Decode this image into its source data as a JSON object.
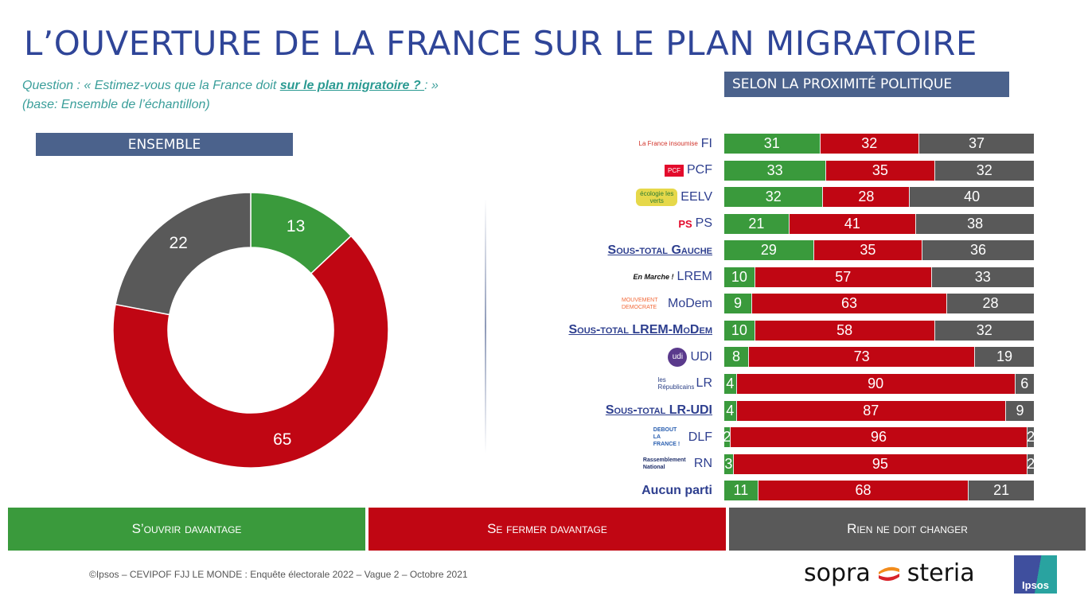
{
  "title": "L’OUVERTURE DE LA FRANCE SUR LE PLAN MIGRATOIRE",
  "question": {
    "prefix": "Question : « Estimez-vous que la France doit ",
    "highlight": "sur le plan migratoire ? ",
    "suffix": ": »",
    "base": "(base: Ensemble de l’échantillon)"
  },
  "sections": {
    "ensemble": "ENSEMBLE",
    "proximite": "SELON LA PROXIMITÉ POLITIQUE"
  },
  "colors": {
    "ouvrir": "#3a9a3c",
    "fermer": "#c00613",
    "rien": "#595959",
    "title": "#2f4598",
    "section": "#4b628c"
  },
  "legend": [
    {
      "key": "ouvrir",
      "label": "S’ouvrir davantage"
    },
    {
      "key": "fermer",
      "label": "Se fermer davantage"
    },
    {
      "key": "rien",
      "label": "Rien ne doit changer"
    }
  ],
  "chart_data": [
    {
      "type": "pie",
      "title": "ENSEMBLE",
      "donut": true,
      "slices": [
        {
          "label": "S’ouvrir davantage",
          "value": 13
        },
        {
          "label": "Se fermer davantage",
          "value": 65
        },
        {
          "label": "Rien ne doit changer",
          "value": 22
        }
      ]
    },
    {
      "type": "bar",
      "stacked": true,
      "orientation": "horizontal",
      "title": "SELON LA PROXIMITÉ POLITIQUE",
      "categories": [
        "FI",
        "PCF",
        "EELV",
        "PS",
        "Sous-total Gauche",
        "LREM",
        "MoDem",
        "Sous-total LREM-MoDem",
        "UDI",
        "LR",
        "Sous-total LR-UDI",
        "DLF",
        "RN",
        "Aucun parti"
      ],
      "series": [
        {
          "name": "S’ouvrir davantage",
          "values": [
            31,
            33,
            32,
            21,
            29,
            10,
            9,
            10,
            8,
            4,
            4,
            2,
            3,
            11
          ]
        },
        {
          "name": "Se fermer davantage",
          "values": [
            32,
            35,
            28,
            41,
            35,
            57,
            63,
            58,
            73,
            90,
            87,
            96,
            95,
            68
          ]
        },
        {
          "name": "Rien ne doit changer",
          "values": [
            37,
            32,
            40,
            38,
            36,
            33,
            28,
            32,
            19,
            6,
            9,
            2,
            2,
            21
          ]
        }
      ],
      "xlim": [
        0,
        100
      ]
    }
  ],
  "rows": [
    {
      "label": "FI",
      "type": "party",
      "logo": "La France insoumise",
      "logo_icon": "fi-logo-icon"
    },
    {
      "label": "PCF",
      "type": "party",
      "logo": "PCF",
      "logo_icon": "pcf-logo-icon"
    },
    {
      "label": "EELV",
      "type": "party",
      "logo": "écologie les verts",
      "logo_icon": "eelv-logo-icon"
    },
    {
      "label": "PS",
      "type": "party",
      "logo": "PS",
      "logo_icon": "ps-logo-icon"
    },
    {
      "label": "Sous-total Gauche",
      "type": "subtotal"
    },
    {
      "label": "LREM",
      "type": "party",
      "logo": "En Marche !",
      "logo_icon": "lrem-logo-icon"
    },
    {
      "label": "MoDem",
      "type": "party",
      "logo": "MOUVEMENT DEMOCRATE",
      "logo_icon": "modem-logo-icon"
    },
    {
      "label": "Sous-total LREM-MoDem",
      "type": "subtotal"
    },
    {
      "label": "UDI",
      "type": "party",
      "logo": "udi",
      "logo_icon": "udi-logo-icon"
    },
    {
      "label": "LR",
      "type": "party",
      "logo": "les Républicains",
      "logo_icon": "lr-logo-icon"
    },
    {
      "label": "Sous-total LR-UDI",
      "type": "subtotal"
    },
    {
      "label": "DLF",
      "type": "party",
      "logo": "DEBOUT LA FRANCE !",
      "logo_icon": "dlf-logo-icon"
    },
    {
      "label": "RN",
      "type": "party",
      "logo": "Rassemblement National",
      "logo_icon": "rn-logo-icon"
    },
    {
      "label": "Aucun parti",
      "type": "bold"
    }
  ],
  "footer": "©Ipsos – CEVIPOF FJJ LE MONDE : Enquête électorale 2022 – Vague 2 – Octobre 2021",
  "logos": {
    "sopra_left": "sopra",
    "sopra_right": "steria",
    "ipsos": "Ipsos"
  }
}
